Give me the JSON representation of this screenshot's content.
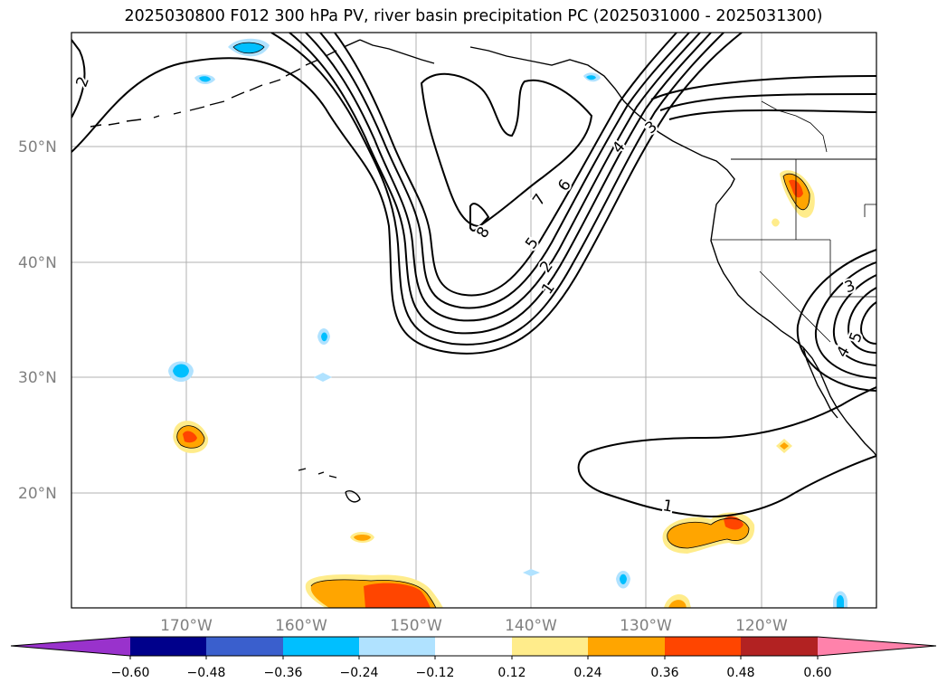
{
  "title": "2025030800 F012 300 hPa PV, river basin precipitation PC (2025031000 - 2025031300)",
  "lat_labels": [
    "50°N",
    "40°N",
    "30°N",
    "20°N"
  ],
  "lon_labels": [
    "170°W",
    "160°W",
    "150°W",
    "140°W",
    "130°W",
    "120°W"
  ],
  "contour_labels": [
    "2",
    "7",
    "6",
    "5",
    "2",
    "1",
    "8",
    "4",
    "3",
    "1",
    "3",
    "4",
    "5"
  ],
  "colorbar": {
    "ticks": [
      "−0.60",
      "−0.48",
      "−0.36",
      "−0.24",
      "−0.12",
      "0.12",
      "0.24",
      "0.36",
      "0.48",
      "0.60"
    ],
    "colors": [
      "#9932cc",
      "#00008b",
      "#3a5fcd",
      "#00bfff",
      "#b0e2ff",
      "#ffffff",
      "#ffec8b",
      "#ffa500",
      "#ff4500",
      "#b22222",
      "#ff82ab"
    ]
  },
  "map_extent": {
    "lon": [
      -180,
      -110
    ],
    "lat": [
      10,
      60
    ]
  },
  "gridlines": true
}
